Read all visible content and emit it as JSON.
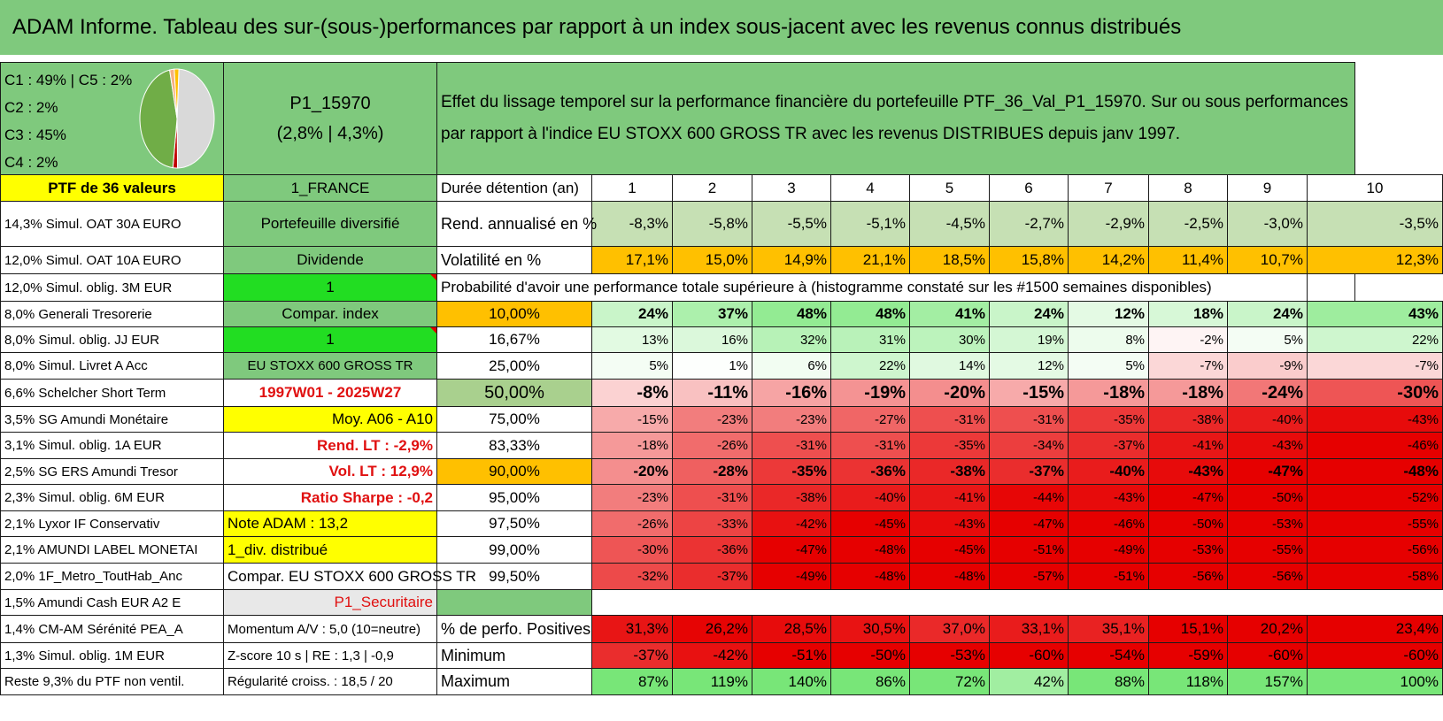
{
  "title": "ADAM Informe. Tableau des sur-(sous-)performances par rapport à un index sous-jacent avec les revenus connus distribués",
  "pie": {
    "legend_lines": [
      "C1 : 49% | C5 : 2%",
      "C2 : 2%",
      "C3 : 45%",
      "C4 : 2%"
    ],
    "slices": [
      {
        "name": "C1",
        "value": 49,
        "color": "#d9d9d9"
      },
      {
        "name": "C2",
        "value": 2,
        "color": "#c00000"
      },
      {
        "name": "C3",
        "value": 45,
        "color": "#70ad47"
      },
      {
        "name": "C4",
        "value": 2,
        "color": "#f4b183"
      },
      {
        "name": "C5",
        "value": 2,
        "color": "#ffc000"
      }
    ]
  },
  "portfolio": {
    "code": "P1_15970",
    "perf": "(2,8% | 4,3%)",
    "description": "Effet du lissage temporel sur la performance financière du portefeuille PTF_36_Val_P1_15970. Sur ou sous performances par rapport à l'indice EU STOXX 600 GROSS TR avec les revenus DISTRIBUES depuis janv 1997."
  },
  "header_row": {
    "col_a": "PTF de 36 valeurs",
    "col_b": "1_FRANCE",
    "col_c": "Durée détention (an)",
    "years": [
      "1",
      "2",
      "3",
      "4",
      "5",
      "6",
      "7",
      "8",
      "9",
      "10"
    ]
  },
  "left_items": [
    "14,3% Simul. OAT 30A EURO",
    "12,0% Simul. OAT 10A EURO",
    "12,0% Simul. oblig. 3M EUR",
    "8,0% Generali Tresorerie",
    "8,0% Simul. oblig. JJ EUR",
    "8,0% Simul. Livret A Acc",
    "6,6% Schelcher Short Term",
    "3,5% SG Amundi Monétaire",
    "3,1% Simul. oblig. 1A EUR",
    "2,5% SG ERS Amundi Tresor",
    "2,3% Simul. oblig. 6M EUR",
    "2,1% Lyxor IF Conservativ",
    "2,1% AMUNDI LABEL MONETAI",
    "2,0% 1F_Metro_ToutHab_Anc",
    "1,5% Amundi Cash EUR A2 E",
    "1,4% CM-AM Sérénité PEA_A",
    "1,3% Simul. oblig. 1M EUR",
    "Reste 9,3% du PTF non ventil."
  ],
  "mid_items": [
    "Portefeuille diversifié",
    "Dividende",
    "1",
    "Compar. index",
    "1",
    "EU STOXX 600 GROSS TR",
    "1997W01 - 2025W27",
    "Moy. A06 - A10",
    "Rend. LT : -2,9%",
    "Vol. LT : 12,9%",
    "Ratio Sharpe : -0,2",
    "Note ADAM : 13,2",
    "1_div. distribué",
    "Compar. EU STOXX 600 GROSS TR",
    "P1_Securitaire",
    "Momentum A/V : 5,0 (10=neutre)",
    "Z-score 10 s | RE : 1,3 | -0,9",
    "Régularité croiss. : 18,5 / 20"
  ],
  "rend": {
    "label": "Rend. annualisé en %",
    "values": [
      "-8,3%",
      "-5,8%",
      "-5,5%",
      "-5,1%",
      "-4,5%",
      "-2,7%",
      "-2,9%",
      "-2,5%",
      "-3,0%",
      "-3,5%"
    ]
  },
  "vol": {
    "label": "Volatilité en %",
    "values": [
      "17,1%",
      "15,0%",
      "14,9%",
      "21,1%",
      "18,5%",
      "15,8%",
      "14,2%",
      "11,4%",
      "10,7%",
      "12,3%"
    ]
  },
  "proba_title": "Probabilité d'avoir une performance totale supérieure à (histogramme constaté sur les #1500 semaines disponibles)",
  "quantiles": [
    {
      "q": "10,00%",
      "values": [
        "24%",
        "37%",
        "48%",
        "48%",
        "41%",
        "24%",
        "12%",
        "18%",
        "24%",
        "43%"
      ]
    },
    {
      "q": "16,67%",
      "values": [
        "13%",
        "16%",
        "32%",
        "31%",
        "30%",
        "19%",
        "8%",
        "-2%",
        "5%",
        "22%"
      ]
    },
    {
      "q": "25,00%",
      "values": [
        "5%",
        "1%",
        "6%",
        "22%",
        "14%",
        "12%",
        "5%",
        "-7%",
        "-9%",
        "-7%"
      ]
    },
    {
      "q": "50,00%",
      "values": [
        "-8%",
        "-11%",
        "-16%",
        "-19%",
        "-20%",
        "-15%",
        "-18%",
        "-18%",
        "-24%",
        "-30%"
      ]
    },
    {
      "q": "75,00%",
      "values": [
        "-15%",
        "-23%",
        "-23%",
        "-27%",
        "-31%",
        "-31%",
        "-35%",
        "-38%",
        "-40%",
        "-43%"
      ]
    },
    {
      "q": "83,33%",
      "values": [
        "-18%",
        "-26%",
        "-31%",
        "-31%",
        "-35%",
        "-34%",
        "-37%",
        "-41%",
        "-43%",
        "-46%"
      ]
    },
    {
      "q": "90,00%",
      "values": [
        "-20%",
        "-28%",
        "-35%",
        "-36%",
        "-38%",
        "-37%",
        "-40%",
        "-43%",
        "-47%",
        "-48%"
      ]
    },
    {
      "q": "95,00%",
      "values": [
        "-23%",
        "-31%",
        "-38%",
        "-40%",
        "-41%",
        "-44%",
        "-43%",
        "-47%",
        "-50%",
        "-52%"
      ]
    },
    {
      "q": "97,50%",
      "values": [
        "-26%",
        "-33%",
        "-42%",
        "-45%",
        "-43%",
        "-47%",
        "-46%",
        "-50%",
        "-53%",
        "-55%"
      ]
    },
    {
      "q": "99,00%",
      "values": [
        "-30%",
        "-36%",
        "-47%",
        "-48%",
        "-45%",
        "-51%",
        "-49%",
        "-53%",
        "-55%",
        "-56%"
      ]
    },
    {
      "q": "99,50%",
      "values": [
        "-32%",
        "-37%",
        "-49%",
        "-48%",
        "-48%",
        "-57%",
        "-51%",
        "-56%",
        "-56%",
        "-58%"
      ]
    }
  ],
  "positives": {
    "label": "% de perfo. Positives",
    "values": [
      "31,3%",
      "26,2%",
      "28,5%",
      "30,5%",
      "37,0%",
      "33,1%",
      "35,1%",
      "15,1%",
      "20,2%",
      "23,4%"
    ]
  },
  "minimum": {
    "label": "Minimum",
    "values": [
      "-37%",
      "-42%",
      "-51%",
      "-50%",
      "-53%",
      "-60%",
      "-54%",
      "-59%",
      "-60%",
      "-60%"
    ]
  },
  "maximum": {
    "label": "Maximum",
    "values": [
      "87%",
      "119%",
      "140%",
      "86%",
      "72%",
      "42%",
      "88%",
      "118%",
      "157%",
      "100%"
    ]
  }
}
